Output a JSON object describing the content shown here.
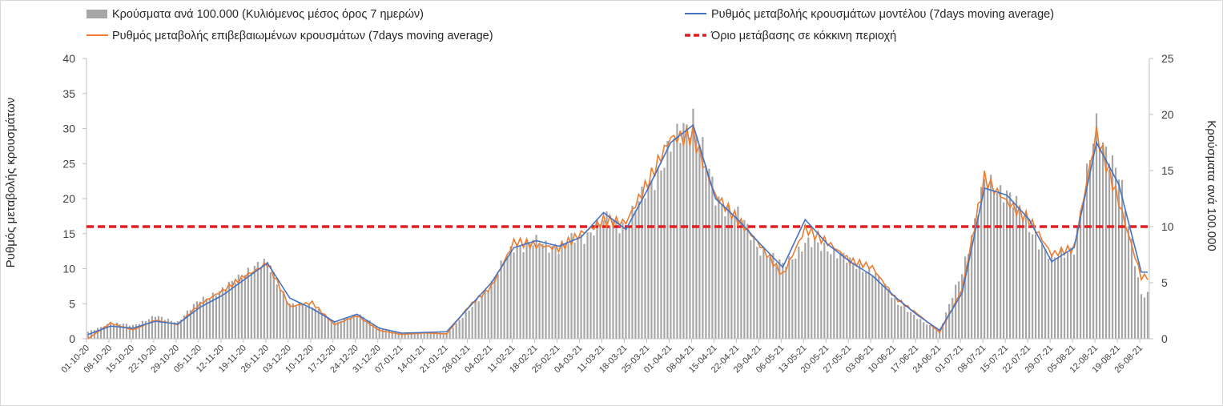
{
  "chart_data": {
    "type": "combo-bar-line",
    "colors": {
      "bars": "#a6a6a6",
      "model_line": "#4472c4",
      "confirmed_line": "#ed7d31",
      "threshold": "#e02020",
      "axis": "#bfbfbf",
      "text": "#404040"
    },
    "ylabel_left": "Ρυθμός μεταβολής κρουσμάτων",
    "ylabel_right": "Κρούσματα ανά 100.000",
    "ylim_left": [
      0,
      40
    ],
    "ylim_right": [
      0,
      25
    ],
    "yticks_left": [
      "0",
      "5",
      "10",
      "15",
      "20",
      "25",
      "30",
      "35",
      "40"
    ],
    "yticks_right": [
      "0",
      "5",
      "10",
      "15",
      "20",
      "25"
    ],
    "x_tick_labels": [
      "01-10-20",
      "08-10-20",
      "15-10-20",
      "22-10-20",
      "29-10-20",
      "05-11-20",
      "12-11-20",
      "19-11-20",
      "26-11-20",
      "03-12-20",
      "10-12-20",
      "17-12-20",
      "24-12-20",
      "31-12-20",
      "07-01-21",
      "14-01-21",
      "21-01-21",
      "28-01-21",
      "04-02-21",
      "11-02-21",
      "18-02-21",
      "25-02-21",
      "04-03-21",
      "11-03-21",
      "18-03-21",
      "25-03-21",
      "01-04-21",
      "08-04-21",
      "15-04-21",
      "22-04-21",
      "29-04-21",
      "06-05-21",
      "13-05-21",
      "20-05-21",
      "27-05-21",
      "03-06-21",
      "10-06-21",
      "17-06-21",
      "24-06-21",
      "01-07-21",
      "08-07-21",
      "15-07-21",
      "22-07-21",
      "29-07-21",
      "05-08-21",
      "12-08-21",
      "19-08-21",
      "26-08-21"
    ],
    "threshold_value": 16,
    "legend": {
      "bars": "Κρούσματα ανά 100.000 (Κυλιόμενος μέσος όρος 7 ημερών)",
      "model": "Ρυθμός μεταβολής κρουσμάτων μοντέλου (7days moving average)",
      "confirmed": "Ρυθμός μεταβολής επιβεβαιωμένων κρουσμάτων (7days moving average)",
      "threshold": "Όριο μετάβασης σε κόκκινη περιοχή"
    },
    "series": [
      {
        "name": "Κρούσματα ανά 100.000 (Κυλιόμενος μέσος όρος 7 ημερών)",
        "axis": "right",
        "kind": "bar",
        "weekly_values": [
          0.6,
          1.4,
          1.2,
          2.0,
          1.5,
          3.5,
          4.3,
          6.0,
          6.8,
          3.0,
          3.0,
          1.4,
          2.2,
          1.0,
          0.5,
          0.6,
          0.5,
          2.5,
          5.0,
          8.3,
          8.5,
          8.2,
          9.0,
          10.5,
          10.2,
          13.5,
          17.0,
          20.0,
          12.5,
          11.0,
          8.0,
          6.5,
          8.5,
          8.2,
          6.8,
          6.0,
          3.5,
          1.8,
          0.7,
          6.0,
          13.8,
          13.2,
          10.0,
          7.0,
          8.2,
          19.0,
          14.5,
          4.0
        ]
      },
      {
        "name": "Ρυθμός μεταβολής κρουσμάτων μοντέλου (7days moving average)",
        "axis": "left",
        "kind": "line",
        "weekly_values": [
          0.6,
          1.8,
          1.5,
          2.5,
          2.1,
          4.5,
          6.2,
          8.5,
          10.8,
          5.8,
          4.3,
          2.4,
          3.5,
          1.5,
          0.8,
          0.9,
          1.0,
          4.5,
          8.0,
          13.0,
          14.0,
          13.2,
          14.5,
          18.0,
          15.6,
          21.5,
          28.0,
          30.5,
          20.0,
          17.0,
          13.5,
          10.2,
          17.0,
          13.5,
          11.0,
          9.0,
          6.0,
          3.4,
          1.2,
          6.5,
          21.5,
          20.5,
          17.0,
          11.0,
          13.0,
          28.0,
          22.0,
          9.5
        ]
      },
      {
        "name": "Ρυθμός μεταβολής επιβεβαιωμένων κρουσμάτων (7days moving average)",
        "axis": "left",
        "kind": "line",
        "weekly_values": [
          0.0,
          2.2,
          1.3,
          2.7,
          2.0,
          4.8,
          6.8,
          9.2,
          11.0,
          4.5,
          5.0,
          2.0,
          3.4,
          1.2,
          0.6,
          0.8,
          0.7,
          4.8,
          7.6,
          13.5,
          13.0,
          13.0,
          15.5,
          17.0,
          16.2,
          21.8,
          29.0,
          30.0,
          20.5,
          16.5,
          13.0,
          9.2,
          16.2,
          13.8,
          10.8,
          10.0,
          6.0,
          3.7,
          0.9,
          6.8,
          22.5,
          20.0,
          17.5,
          12.0,
          12.5,
          29.0,
          20.0,
          9.0
        ]
      }
    ]
  }
}
